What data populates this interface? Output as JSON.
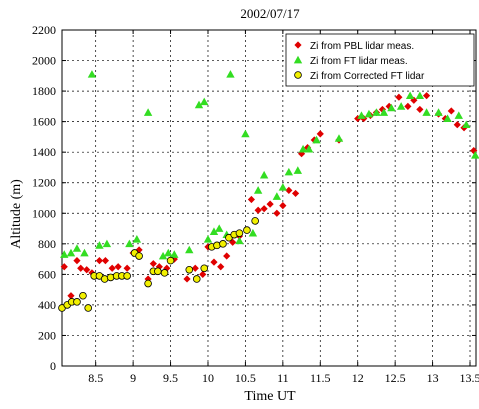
{
  "chart_data": {
    "type": "scatter",
    "title": "2002/07/17",
    "xlabel": "Time UT",
    "ylabel": "Altitude (m)",
    "xlim": [
      8.05,
      13.58
    ],
    "ylim": [
      0,
      2200
    ],
    "xticks": [
      8.5,
      9,
      9.5,
      10,
      10.5,
      11,
      11.5,
      12,
      12.5,
      13,
      13.5
    ],
    "xtick_labels": [
      "8.5",
      "9",
      "9.5",
      "10",
      "10.5",
      "11",
      "11.5",
      "12",
      "12.5",
      "13",
      "13.5"
    ],
    "yticks": [
      0,
      200,
      400,
      600,
      800,
      1000,
      1200,
      1400,
      1600,
      1800,
      2000,
      2200
    ],
    "ytick_labels": [
      "0",
      "200",
      "400",
      "600",
      "800",
      "1000",
      "1200",
      "1400",
      "1600",
      "1800",
      "2000",
      "2200"
    ],
    "grid": true,
    "legend_position": "top-right",
    "series": [
      {
        "name": "Zi from PBL lidar meas.",
        "marker": "diamond",
        "color": "#e00000",
        "points": [
          [
            8.08,
            650
          ],
          [
            8.17,
            460
          ],
          [
            8.25,
            690
          ],
          [
            8.3,
            640
          ],
          [
            8.38,
            630
          ],
          [
            8.45,
            610
          ],
          [
            8.55,
            690
          ],
          [
            8.63,
            690
          ],
          [
            8.72,
            640
          ],
          [
            8.8,
            650
          ],
          [
            8.92,
            640
          ],
          [
            9.0,
            740
          ],
          [
            9.08,
            760
          ],
          [
            9.2,
            570
          ],
          [
            9.27,
            670
          ],
          [
            9.35,
            650
          ],
          [
            9.45,
            640
          ],
          [
            9.55,
            700
          ],
          [
            9.72,
            570
          ],
          [
            9.83,
            640
          ],
          [
            9.93,
            600
          ],
          [
            10.0,
            780
          ],
          [
            10.08,
            680
          ],
          [
            10.17,
            650
          ],
          [
            10.25,
            720
          ],
          [
            10.33,
            810
          ],
          [
            10.42,
            850
          ],
          [
            10.52,
            890
          ],
          [
            10.58,
            1090
          ],
          [
            10.67,
            1020
          ],
          [
            10.75,
            1030
          ],
          [
            10.83,
            1060
          ],
          [
            10.92,
            1000
          ],
          [
            11.0,
            1050
          ],
          [
            11.08,
            1150
          ],
          [
            11.17,
            1130
          ],
          [
            11.25,
            1390
          ],
          [
            11.33,
            1430
          ],
          [
            11.42,
            1480
          ],
          [
            11.5,
            1520
          ],
          [
            11.75,
            1480
          ],
          [
            12.0,
            1620
          ],
          [
            12.08,
            1620
          ],
          [
            12.17,
            1640
          ],
          [
            12.25,
            1660
          ],
          [
            12.33,
            1680
          ],
          [
            12.42,
            1700
          ],
          [
            12.55,
            1760
          ],
          [
            12.67,
            1700
          ],
          [
            12.75,
            1740
          ],
          [
            12.83,
            1680
          ],
          [
            12.92,
            1770
          ],
          [
            13.08,
            1650
          ],
          [
            13.17,
            1620
          ],
          [
            13.25,
            1670
          ],
          [
            13.33,
            1580
          ],
          [
            13.42,
            1560
          ],
          [
            13.55,
            1410
          ]
        ]
      },
      {
        "name": "Zi from FT lidar meas.",
        "marker": "triangle",
        "color": "#33dd22",
        "points": [
          [
            8.08,
            730
          ],
          [
            8.17,
            740
          ],
          [
            8.25,
            770
          ],
          [
            8.35,
            740
          ],
          [
            8.45,
            1910
          ],
          [
            8.55,
            790
          ],
          [
            8.65,
            800
          ],
          [
            8.95,
            800
          ],
          [
            9.05,
            830
          ],
          [
            9.2,
            1660
          ],
          [
            9.4,
            720
          ],
          [
            9.47,
            740
          ],
          [
            9.55,
            730
          ],
          [
            9.75,
            760
          ],
          [
            9.88,
            1710
          ],
          [
            9.95,
            1730
          ],
          [
            10.0,
            830
          ],
          [
            10.08,
            880
          ],
          [
            10.15,
            900
          ],
          [
            10.25,
            860
          ],
          [
            10.3,
            1910
          ],
          [
            10.42,
            820
          ],
          [
            10.5,
            1520
          ],
          [
            10.6,
            870
          ],
          [
            10.67,
            1150
          ],
          [
            10.75,
            1250
          ],
          [
            10.92,
            1110
          ],
          [
            11.0,
            1170
          ],
          [
            11.08,
            1270
          ],
          [
            11.2,
            1280
          ],
          [
            11.27,
            1420
          ],
          [
            11.35,
            1420
          ],
          [
            11.45,
            1480
          ],
          [
            11.75,
            1490
          ],
          [
            12.05,
            1640
          ],
          [
            12.15,
            1650
          ],
          [
            12.25,
            1660
          ],
          [
            12.35,
            1660
          ],
          [
            12.45,
            1690
          ],
          [
            12.58,
            1700
          ],
          [
            12.7,
            1770
          ],
          [
            12.83,
            1770
          ],
          [
            12.92,
            1660
          ],
          [
            13.08,
            1660
          ],
          [
            13.2,
            1620
          ],
          [
            13.35,
            1640
          ],
          [
            13.45,
            1580
          ],
          [
            13.57,
            1380
          ]
        ]
      },
      {
        "name": "Zi from Corrected FT lidar",
        "marker": "circle",
        "color": "#f2f000",
        "points": [
          [
            8.05,
            380
          ],
          [
            8.12,
            400
          ],
          [
            8.18,
            420
          ],
          [
            8.25,
            420
          ],
          [
            8.33,
            460
          ],
          [
            8.4,
            380
          ],
          [
            8.48,
            590
          ],
          [
            8.55,
            590
          ],
          [
            8.62,
            570
          ],
          [
            8.7,
            580
          ],
          [
            8.78,
            590
          ],
          [
            8.85,
            590
          ],
          [
            8.92,
            590
          ],
          [
            9.02,
            740
          ],
          [
            9.08,
            720
          ],
          [
            9.2,
            540
          ],
          [
            9.27,
            620
          ],
          [
            9.33,
            620
          ],
          [
            9.42,
            610
          ],
          [
            9.5,
            690
          ],
          [
            9.75,
            630
          ],
          [
            9.85,
            570
          ],
          [
            9.95,
            640
          ],
          [
            10.05,
            780
          ],
          [
            10.12,
            790
          ],
          [
            10.2,
            800
          ],
          [
            10.28,
            840
          ],
          [
            10.35,
            860
          ],
          [
            10.42,
            870
          ],
          [
            10.52,
            890
          ],
          [
            10.63,
            950
          ]
        ]
      }
    ]
  }
}
